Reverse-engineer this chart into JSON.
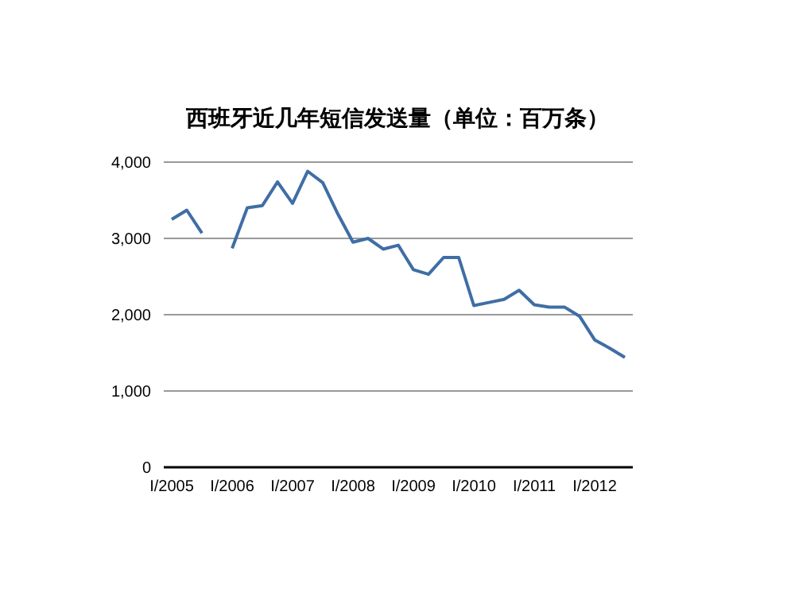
{
  "chart_data": {
    "type": "line",
    "title": "西班牙近几年短信发送量（单位：百万条）",
    "categories": [
      "I/2005",
      null,
      null,
      null,
      "I/2006",
      null,
      null,
      null,
      "I/2007",
      null,
      null,
      null,
      "I/2008",
      null,
      null,
      null,
      "I/2009",
      null,
      null,
      null,
      "I/2010",
      null,
      null,
      null,
      "I/2011",
      null,
      null,
      null,
      "I/2012",
      null,
      null
    ],
    "series": [
      {
        "color": "#3f6ea5",
        "values": [
          3250,
          3370,
          3070,
          null,
          2870,
          3400,
          3430,
          3740,
          3460,
          3880,
          3730,
          3320,
          2950,
          3000,
          2860,
          2910,
          2590,
          2530,
          2750,
          2750,
          2120,
          2160,
          2200,
          2320,
          2130,
          2100,
          2100,
          1980,
          1670,
          1560,
          1440
        ]
      }
    ],
    "ylim": [
      0,
      4000
    ],
    "yticks": [
      0,
      {
        "value": 1000,
        "label": "1,000"
      },
      {
        "value": 2000,
        "label": "2,000"
      },
      {
        "value": 3000,
        "label": "3,000"
      },
      {
        "value": 4000,
        "label": "4,000"
      }
    ],
    "grid": "y",
    "marker": "none",
    "line_style": "solid"
  }
}
